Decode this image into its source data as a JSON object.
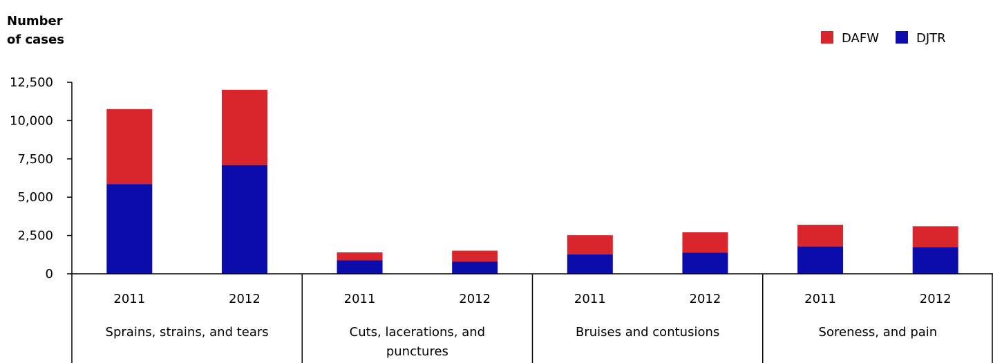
{
  "chart_data": {
    "type": "bar",
    "stacked": true,
    "ylabel_lines": [
      "Number",
      "of cases"
    ],
    "ylim": [
      0,
      12500
    ],
    "yticks": [
      "12,500",
      "10,000",
      "7,500",
      "5,000",
      "2,500",
      "0"
    ],
    "ytick_values": [
      12500,
      10000,
      7500,
      5000,
      2500,
      0
    ],
    "groups": [
      {
        "label_lines": [
          "Sprains, strains, and tears"
        ],
        "years": [
          "2011",
          "2012"
        ]
      },
      {
        "label_lines": [
          "Cuts, lacerations, and",
          "punctures"
        ],
        "years": [
          "2011",
          "2012"
        ]
      },
      {
        "label_lines": [
          "Bruises and contusions"
        ],
        "years": [
          "2011",
          "2012"
        ]
      },
      {
        "label_lines": [
          "Soreness, and pain"
        ],
        "years": [
          "2011",
          "2012"
        ]
      }
    ],
    "series": [
      {
        "name": "DJTR",
        "color": "#0C0CAA",
        "values": [
          5860,
          7100,
          880,
          790,
          1270,
          1390,
          1780,
          1740
        ]
      },
      {
        "name": "DAFW",
        "color": "#D9262D",
        "values": [
          4890,
          4910,
          520,
          720,
          1250,
          1320,
          1420,
          1360
        ]
      }
    ],
    "legend": {
      "position": "top-right",
      "order": [
        "DAFW",
        "DJTR"
      ]
    },
    "grid": false
  }
}
